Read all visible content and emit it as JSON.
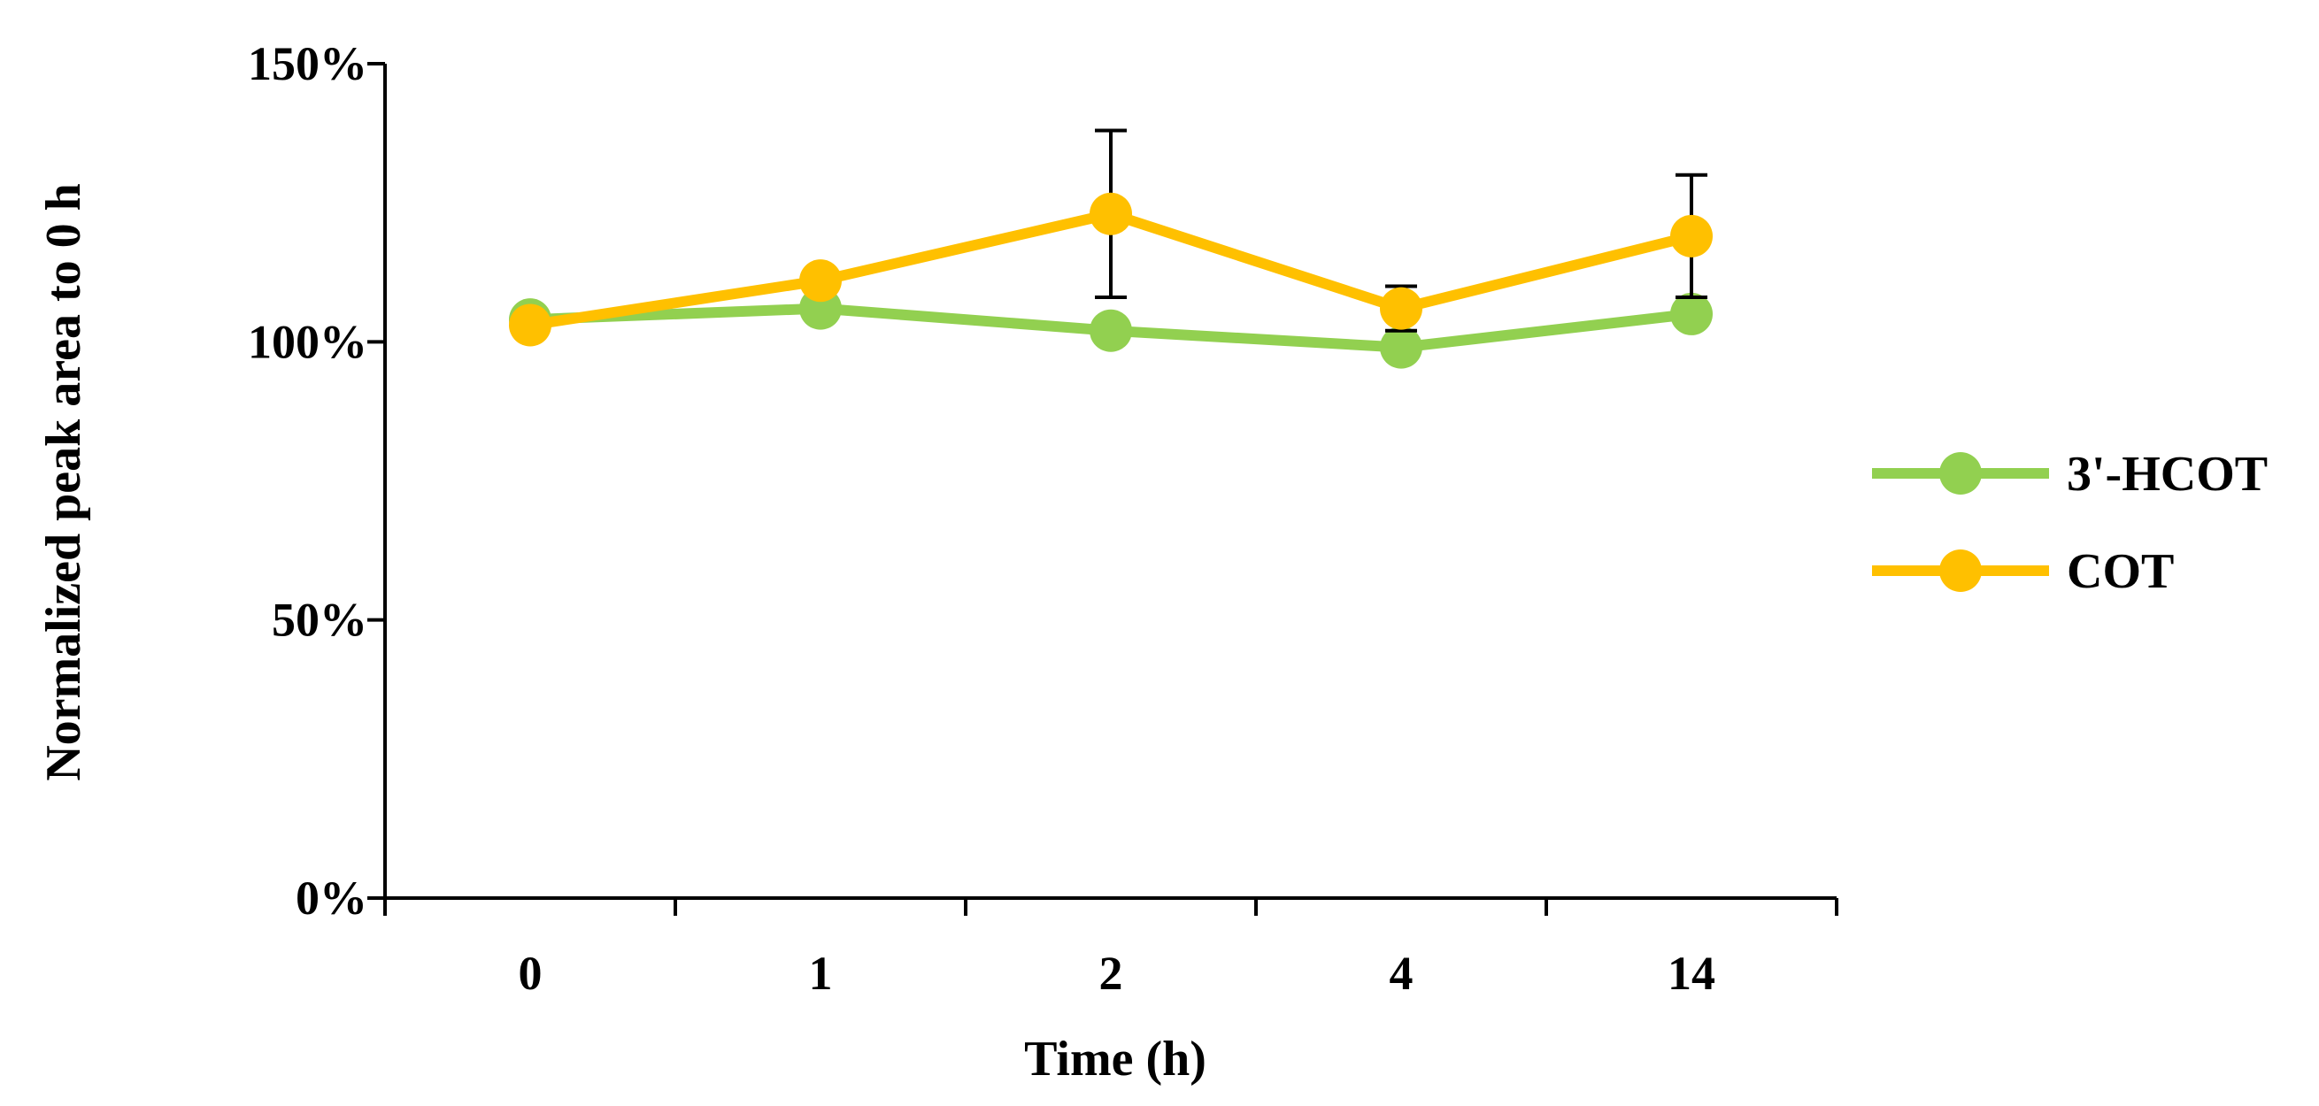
{
  "chart_data": {
    "type": "line",
    "title": "",
    "xlabel": "Time (h)",
    "ylabel": "Normalized peak area to 0 h",
    "categories": [
      "0",
      "1",
      "2",
      "4",
      "14"
    ],
    "ylim": [
      0,
      150
    ],
    "yticks": [
      0,
      50,
      100,
      150
    ],
    "ytick_labels": [
      "0%",
      "50%",
      "100%",
      "150%"
    ],
    "grid": false,
    "legend_position": "right",
    "series": [
      {
        "name": "3'-HCOT",
        "color": "#92D050",
        "values": [
          104,
          106,
          102,
          99,
          105
        ],
        "errors": [
          1,
          1,
          1,
          1,
          1
        ]
      },
      {
        "name": "COT",
        "color": "#FFC000",
        "values": [
          103,
          111,
          123,
          106,
          119
        ],
        "errors": [
          1,
          1,
          15,
          4,
          11
        ]
      }
    ]
  }
}
